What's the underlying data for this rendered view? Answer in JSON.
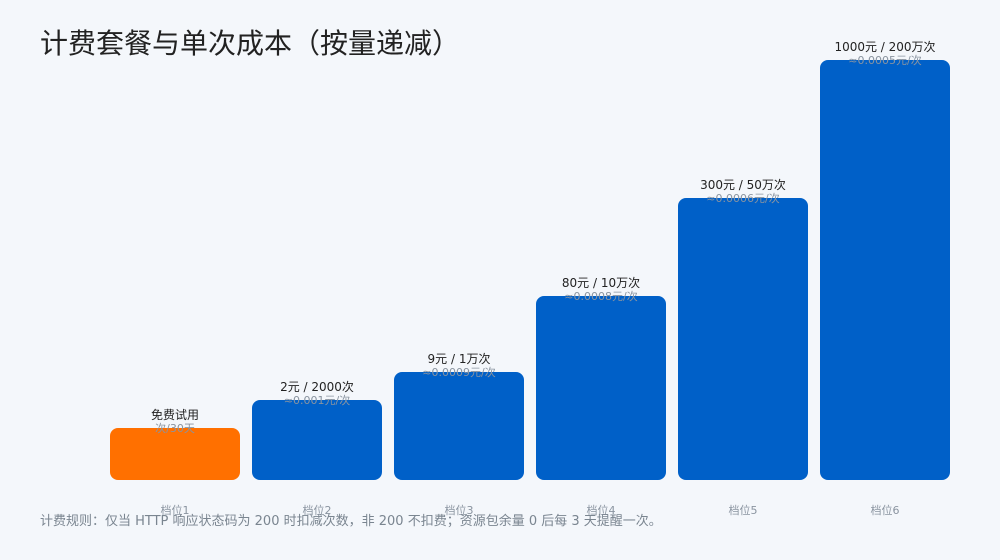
{
  "title": "计费套餐与单次成本（按量递减）",
  "tiers": [
    {
      "name": "档位1",
      "label": "免费试用",
      "sub": "次/30天"
    },
    {
      "name": "档位2",
      "label": "2元 / 2000次",
      "sub": "≈0.001元/次"
    },
    {
      "name": "档位3",
      "label": "9元 / 1万次",
      "sub": "≈0.0009元/次"
    },
    {
      "name": "档位4",
      "label": "80元 / 10万次",
      "sub": "≈0.0008元/次"
    },
    {
      "name": "档位5",
      "label": "300元 / 50万次",
      "sub": "≈0.0006元/次"
    },
    {
      "name": "档位6",
      "label": "1000元 / 200万次",
      "sub": "≈0.0005元/次"
    }
  ],
  "footer": "计费规则：仅当 HTTP 响应状态码为 200 时扣减次数，非 200 不扣费；资源包余量 0 后每 3 天提醒一次。"
}
